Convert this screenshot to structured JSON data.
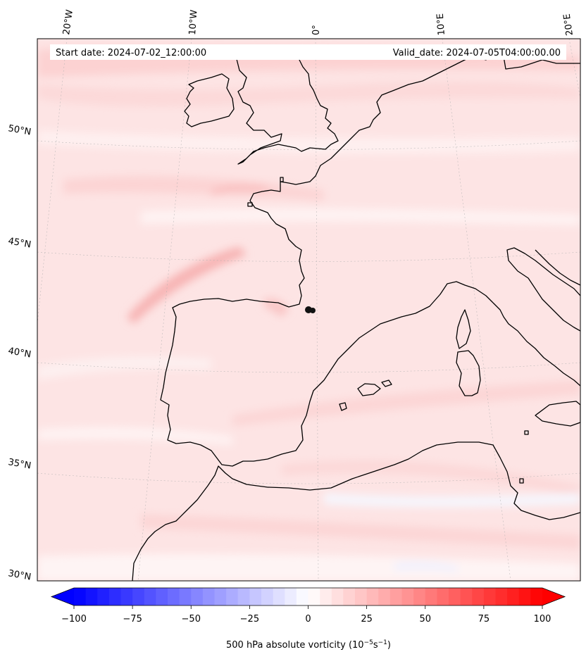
{
  "map": {
    "start_date_text": "Start date: 2024-07-02_12:00:00",
    "valid_date_text": "Valid_date: 2024-07-05T04:00:00.00",
    "lon_labels": [
      "20°W",
      "10°W",
      "0°",
      "10°E",
      "20°E"
    ],
    "lat_labels": [
      "50°N",
      "45°N",
      "40°N",
      "35°N",
      "30°N"
    ],
    "projection": "conic",
    "field": "500 hPa absolute vorticity",
    "background_color": "#fde4e4",
    "coastline_color": "#000000"
  },
  "colorbar": {
    "label": "500 hPa absolute vorticity (10",
    "label_exp1": "−5",
    "label_mid": "s",
    "label_exp2": "−1",
    "label_end": ")",
    "ticks": [
      "−100",
      "−75",
      "−50",
      "−25",
      "0",
      "25",
      "50",
      "75",
      "100"
    ],
    "min": -100,
    "max": 100,
    "step": 5,
    "low_color": "#0000ff",
    "high_color": "#ff0000",
    "extend": "both"
  }
}
